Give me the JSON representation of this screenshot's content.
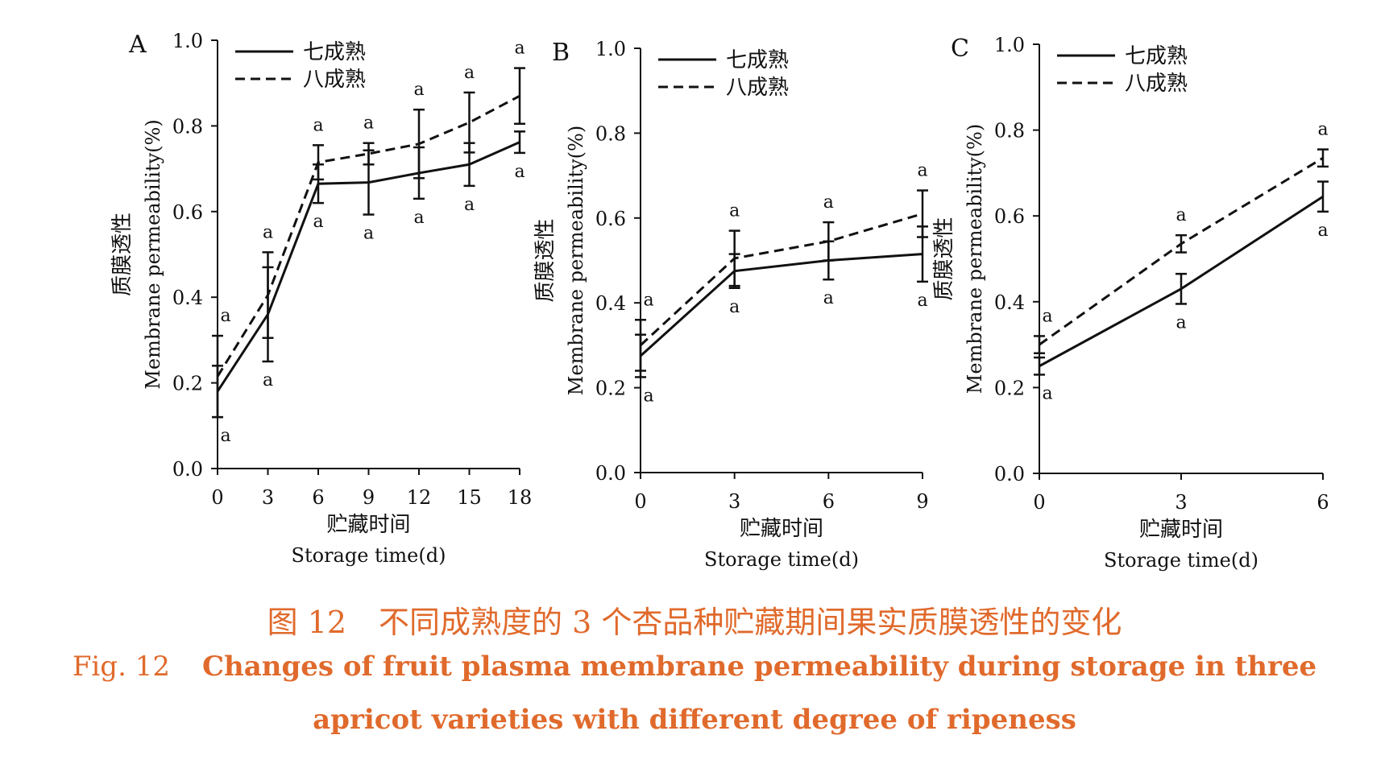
{
  "chart_data": [
    {
      "type": "line",
      "panel_label": "A",
      "x": [
        0,
        3,
        6,
        9,
        12,
        15,
        18
      ],
      "xlim": [
        0,
        18
      ],
      "ylim": [
        0,
        1.0
      ],
      "yticks": [
        "0.0",
        "0.2",
        "0.4",
        "0.6",
        "0.8",
        "1.0"
      ],
      "xlabel_cn": "贮藏时间",
      "xlabel_en": "Storage time(d)",
      "ylabel_cn": "质膜透性",
      "ylabel_en": "Membrane permeability(%)",
      "series": [
        {
          "name": "七成熟",
          "style": "solid",
          "values": [
            0.18,
            0.36,
            0.665,
            0.668,
            0.69,
            0.71,
            0.762
          ],
          "errors": [
            0.06,
            0.11,
            0.045,
            0.075,
            0.06,
            0.05,
            0.025
          ],
          "labels": [
            "a",
            "a",
            "a",
            "a",
            "a",
            "a",
            "a"
          ]
        },
        {
          "name": "八成熟",
          "style": "dashed",
          "values": [
            0.215,
            0.405,
            0.715,
            0.735,
            0.758,
            0.808,
            0.87
          ],
          "errors": [
            0.095,
            0.1,
            0.04,
            0.025,
            0.08,
            0.07,
            0.065
          ],
          "labels": [
            "a",
            "a",
            "a",
            "a",
            "a",
            "a",
            "a"
          ]
        }
      ]
    },
    {
      "type": "line",
      "panel_label": "B",
      "x": [
        0,
        3,
        6,
        9
      ],
      "xlim": [
        0,
        9
      ],
      "ylim": [
        0,
        1.0
      ],
      "yticks": [
        "0.0",
        "0.2",
        "0.4",
        "0.6",
        "0.8",
        "1.0"
      ],
      "xlabel_cn": "贮藏时间",
      "xlabel_en": "Storage time(d)",
      "ylabel_cn": "质膜透性",
      "ylabel_en": "Membrane permeability(%)",
      "series": [
        {
          "name": "七成熟",
          "style": "solid",
          "values": [
            0.275,
            0.475,
            0.5,
            0.515
          ],
          "errors": [
            0.05,
            0.04,
            0.045,
            0.065
          ],
          "labels": [
            "a",
            "a",
            "a",
            "a"
          ]
        },
        {
          "name": "八成熟",
          "style": "dashed",
          "values": [
            0.3,
            0.505,
            0.545,
            0.61
          ],
          "errors": [
            0.06,
            0.065,
            0.045,
            0.055
          ],
          "labels": [
            "a",
            "a",
            "a",
            "a"
          ]
        }
      ]
    },
    {
      "type": "line",
      "panel_label": "C",
      "x": [
        0,
        3,
        6
      ],
      "xlim": [
        0,
        6
      ],
      "ylim": [
        0,
        1.0
      ],
      "yticks": [
        "0.0",
        "0.2",
        "0.4",
        "0.6",
        "0.8",
        "1.0"
      ],
      "xlabel_cn": "贮藏时间",
      "xlabel_en": "Storage time(d)",
      "ylabel_cn": "质膜透性",
      "ylabel_en": "Membrane permeability(%)",
      "series": [
        {
          "name": "七成熟",
          "style": "solid",
          "values": [
            0.25,
            0.43,
            0.645
          ],
          "errors": [
            0.02,
            0.035,
            0.035
          ],
          "labels": [
            "a",
            "a",
            "a"
          ]
        },
        {
          "name": "八成熟",
          "style": "dashed",
          "values": [
            0.3,
            0.535,
            0.735
          ],
          "errors": [
            0.02,
            0.02,
            0.02
          ],
          "labels": [
            "a",
            "a",
            "a"
          ]
        }
      ]
    }
  ],
  "caption": {
    "cn_label": "图 12",
    "cn_text": "不同成熟度的 3 个杏品种贮藏期间果实质膜透性的变化",
    "en_label": "Fig. 12",
    "en_line1": "Changes of fruit plasma membrane permeability during storage in three",
    "en_line2": "apricot varieties with different degree of ripeness"
  }
}
